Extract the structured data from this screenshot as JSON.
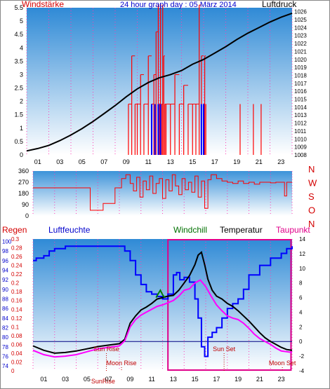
{
  "chart_data": [
    {
      "panel": "wind-pressure",
      "type": "line",
      "title": "24 hour graph day : 05 März 2014",
      "left_axis_label": "Windstärke",
      "right_axis_label": "Luftdruck",
      "left_ticks": [
        "0",
        "0.5",
        "1",
        "1.5",
        "2",
        "2.5",
        "3",
        "3.5",
        "4",
        "4.5",
        "5",
        "5.5"
      ],
      "left_range": [
        0,
        5.5
      ],
      "right_ticks": [
        "1008",
        "1009",
        "1010",
        "1011",
        "1012",
        "1013",
        "1014",
        "1015",
        "1016",
        "1017",
        "1018",
        "1019",
        "1020",
        "1021",
        "1022",
        "1023",
        "1024",
        "1025",
        "1026"
      ],
      "right_range": [
        1008,
        1026.5
      ],
      "x_ticks": [
        "01",
        "03",
        "05",
        "07",
        "09",
        "11",
        "13",
        "15",
        "17",
        "19",
        "21",
        "23"
      ],
      "x_range": [
        0,
        24
      ],
      "series": [
        {
          "color": "#000000",
          "axis": "right",
          "x": [
            0,
            1,
            2,
            3,
            4,
            5,
            6,
            7,
            8,
            9,
            10,
            11,
            12,
            13,
            14,
            15,
            16,
            17,
            18,
            19,
            20,
            21,
            22,
            23,
            24
          ],
          "values": [
            1008.5,
            1008.8,
            1009.2,
            1009.8,
            1010.5,
            1011.3,
            1012.2,
            1013.2,
            1014.2,
            1015.3,
            1016.3,
            1017.1,
            1017.7,
            1018.1,
            1018.6,
            1019.4,
            1020.0,
            1020.8,
            1021.6,
            1022.5,
            1023.3,
            1024.0,
            1024.7,
            1025.3,
            1025.8
          ]
        },
        {
          "color": "#ff0000",
          "axis": "left",
          "kind": "gust-bars",
          "x": [
            9.2,
            9.5,
            9.8,
            10.0,
            10.3,
            10.6,
            11.0,
            11.3,
            11.5,
            11.7,
            11.9,
            12.0,
            12.1,
            12.2,
            12.3,
            12.4,
            12.5,
            12.6,
            13.0,
            13.4,
            13.8,
            14.2,
            14.6,
            15.0,
            15.3,
            15.6,
            15.8,
            16.0,
            16.1,
            16.2,
            19.3,
            20.5,
            21.2
          ],
          "values": [
            1.9,
            3.7,
            1.9,
            1.9,
            3.0,
            1.9,
            3.7,
            1.9,
            3.0,
            4.6,
            5.6,
            1.9,
            5.6,
            1.9,
            5.6,
            3.7,
            1.9,
            1.9,
            1.9,
            3.0,
            1.9,
            2.6,
            1.9,
            1.9,
            1.9,
            5.6,
            3.7,
            1.9,
            3.7,
            1.9,
            1.9,
            1.9,
            1.9
          ]
        },
        {
          "color": "#0000ff",
          "axis": "left",
          "kind": "mean-bars",
          "x": [
            11.3,
            11.6,
            11.9,
            12.1,
            15.8,
            16.0
          ],
          "values": [
            1.9,
            1.9,
            1.9,
            1.9,
            1.9,
            1.9
          ]
        }
      ]
    },
    {
      "panel": "wind-direction",
      "type": "line",
      "left_ticks": [
        "0",
        "90",
        "180",
        "270",
        "360"
      ],
      "left_range": [
        0,
        360
      ],
      "right_labels": [
        "N",
        "W",
        "S",
        "O",
        "N"
      ],
      "x_range": [
        0,
        24
      ],
      "series": [
        {
          "color": "#ff0000",
          "x": [
            0,
            5.2,
            5.3,
            6.0,
            6.5,
            7.5,
            7.6,
            8.2,
            8.6,
            9.0,
            9.3,
            9.6,
            9.9,
            10.2,
            10.5,
            10.8,
            11.1,
            11.4,
            11.7,
            12.0,
            12.3,
            12.6,
            12.9,
            13.2,
            13.5,
            13.8,
            14.1,
            14.4,
            14.7,
            15.0,
            15.3,
            15.6,
            15.9,
            16.2,
            16.5,
            17.0,
            17.5,
            18.0,
            18.5,
            19.0,
            19.5,
            20.0,
            20.5,
            21.0,
            21.5,
            22.0,
            22.5,
            23.0,
            23.3,
            23.5,
            24.0
          ],
          "values": [
            225,
            225,
            45,
            45,
            100,
            100,
            225,
            300,
            330,
            260,
            200,
            310,
            150,
            280,
            210,
            320,
            180,
            260,
            300,
            140,
            290,
            200,
            330,
            240,
            170,
            300,
            210,
            270,
            190,
            320,
            150,
            280,
            60,
            290,
            330,
            300,
            280,
            270,
            260,
            280,
            260,
            270,
            255,
            270,
            270,
            265,
            270,
            270,
            160,
            270,
            270
          ]
        }
      ]
    },
    {
      "panel": "humidity-temperature",
      "type": "line",
      "labels": {
        "regen": "Regen",
        "luftfeuchte": "Luftfeuchte",
        "windchill": "Windchill",
        "temperatur": "Temperatur",
        "taupunkt": "Taupunkt"
      },
      "rain_ticks": [
        "0",
        "0.02",
        "0.04",
        "0.06",
        "0.08",
        "0.1",
        "0.12",
        "0.14",
        "0.16",
        "0.18",
        "0.2",
        "0.22",
        "0.24",
        "0.26",
        "0.28",
        "0.3"
      ],
      "humidity_ticks": [
        "74",
        "76",
        "78",
        "80",
        "82",
        "84",
        "86",
        "88",
        "90",
        "92",
        "94",
        "96",
        "98",
        "100"
      ],
      "humidity_range": [
        73,
        100.5
      ],
      "temperature_ticks": [
        "-4",
        "-2",
        "0",
        "2",
        "4",
        "6",
        "8",
        "10",
        "12",
        "14"
      ],
      "temperature_range": [
        -4,
        14
      ],
      "x_ticks": [
        "01",
        "03",
        "05",
        "07",
        "09",
        "11",
        "13",
        "15",
        "17",
        "19",
        "21",
        "23"
      ],
      "x_range": [
        0,
        24
      ],
      "annotations": [
        {
          "text": "Sun Rise",
          "x": 6.8
        },
        {
          "text": "Moon Rise",
          "x": 8.2
        },
        {
          "text": "Sun Set",
          "x": 17.7
        },
        {
          "text": "Moon Set",
          "x": 23.1
        },
        {
          "text": "SunRise",
          "x": 6.5
        }
      ],
      "series": [
        {
          "name": "Luftfeuchte",
          "color": "#0000ff",
          "axis": "humidity",
          "x": [
            0,
            0.3,
            1,
            1.5,
            2,
            3,
            8,
            8.5,
            9,
            9.5,
            10,
            10.5,
            11,
            11.5,
            12,
            12.5,
            13,
            13.3,
            13.6,
            14,
            14.5,
            15,
            15.3,
            15.6,
            15.9,
            16.2,
            16.6,
            17,
            17.5,
            18,
            18.5,
            19,
            19.5,
            20,
            21,
            22,
            23,
            23.5,
            24
          ],
          "values": [
            96,
            96.5,
            97,
            98,
            98.5,
            99,
            99,
            98,
            96,
            93,
            91,
            89.5,
            89,
            88.5,
            88,
            89,
            93,
            93.5,
            92,
            92.5,
            91.5,
            88,
            84,
            78,
            76,
            80,
            81,
            82,
            84,
            86,
            87,
            88,
            90,
            93,
            95,
            96.5,
            97.5,
            98.5,
            99
          ]
        },
        {
          "name": "Temperatur",
          "color": "#000000",
          "axis": "temperature",
          "x": [
            0,
            1,
            2,
            3,
            4,
            5,
            6,
            7,
            8,
            8.5,
            9,
            9.5,
            10,
            10.5,
            11,
            11.5,
            12,
            12.5,
            13,
            13.5,
            14,
            14.5,
            15,
            15.3,
            15.6,
            15.9,
            16.2,
            16.6,
            17,
            17.5,
            18,
            18.5,
            19,
            19.5,
            20,
            20.5,
            21,
            21.5,
            22,
            22.5,
            23,
            23.5,
            24
          ],
          "values": [
            -0.6,
            -1.2,
            -1.6,
            -1.5,
            -1.3,
            -1,
            -0.7,
            -0.5,
            -0.3,
            0.3,
            2.5,
            3.5,
            4.3,
            4.7,
            5.2,
            5.8,
            6,
            6.2,
            6.3,
            7,
            8,
            9,
            10.5,
            11.8,
            12.2,
            10.5,
            8.5,
            7,
            6.2,
            5.8,
            5.2,
            4.8,
            4.2,
            3.5,
            2.8,
            2,
            1.2,
            0.5,
            0,
            -0.4,
            -0.8,
            -1.1,
            -1.2
          ]
        },
        {
          "name": "Taupunkt",
          "color": "#ff00ff",
          "axis": "temperature",
          "x": [
            0,
            1,
            2,
            3,
            4,
            5,
            6,
            7,
            8,
            8.5,
            9,
            9.5,
            10,
            10.5,
            11,
            11.5,
            12,
            12.5,
            13,
            13.5,
            14,
            14.5,
            15,
            15.5,
            16,
            16.5,
            17,
            17.5,
            18,
            18.5,
            19,
            19.5,
            20,
            20.5,
            21,
            21.5,
            22,
            22.5,
            23,
            23.5,
            24
          ],
          "values": [
            -1.2,
            -1.8,
            -2.1,
            -2,
            -1.8,
            -1.4,
            -1,
            -0.8,
            -0.6,
            0.1,
            2,
            3,
            3.6,
            4,
            4.4,
            4.8,
            5,
            5.3,
            5.6,
            6.2,
            7,
            7.2,
            8,
            8.4,
            7.5,
            6.2,
            5,
            4.2,
            3.5,
            3.2,
            3,
            2.5,
            1.8,
            1,
            0.4,
            0,
            -0.4,
            -0.9,
            -1.3,
            -1.4,
            -1.5
          ]
        },
        {
          "name": "Windchill",
          "color": "#008000",
          "axis": "temperature",
          "x": [
            11.4,
            11.6,
            11.8,
            12.0,
            12.2
          ],
          "values": [
            6.0,
            6.5,
            7.0,
            6.4,
            6.0
          ]
        }
      ]
    }
  ]
}
